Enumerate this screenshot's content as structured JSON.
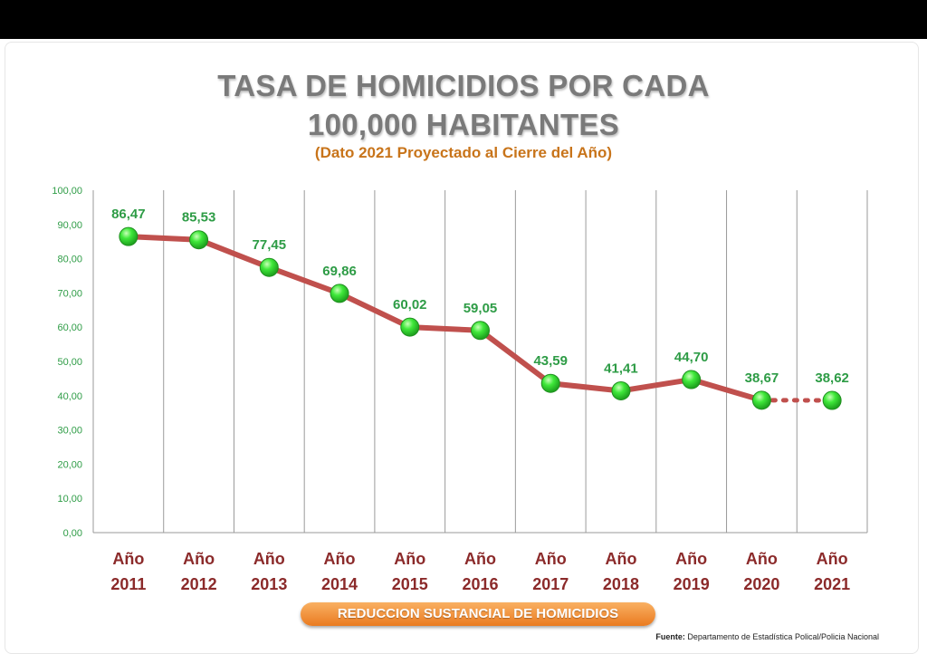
{
  "chart_data": {
    "type": "line",
    "title_line1": "TASA DE HOMICIDIOS POR CADA",
    "title_line2": "100,000 HABITANTES",
    "subtitle": "(Dato 2021 Proyectado al Cierre del Año)",
    "categories": [
      [
        "Año",
        "2011"
      ],
      [
        "Año",
        "2012"
      ],
      [
        "Año",
        "2013"
      ],
      [
        "Año",
        "2014"
      ],
      [
        "Año",
        "2015"
      ],
      [
        "Año",
        "2016"
      ],
      [
        "Año",
        "2017"
      ],
      [
        "Año",
        "2018"
      ],
      [
        "Año",
        "2019"
      ],
      [
        "Año",
        "2020"
      ],
      [
        "Año",
        "2021"
      ]
    ],
    "values": [
      86.47,
      85.53,
      77.45,
      69.86,
      60.02,
      59.05,
      43.59,
      41.41,
      44.7,
      38.67,
      38.62
    ],
    "data_labels": [
      "86,47",
      "85,53",
      "77,45",
      "69,86",
      "60,02",
      "59,05",
      "43,59",
      "41,41",
      "44,70",
      "38,67",
      "38,62"
    ],
    "projected_from_index": 9,
    "ylim": [
      0,
      100
    ],
    "yticks": [
      0,
      10,
      20,
      30,
      40,
      50,
      60,
      70,
      80,
      90,
      100
    ],
    "ytick_labels": [
      "0,00",
      "10,00",
      "20,00",
      "30,00",
      "40,00",
      "50,00",
      "60,00",
      "70,00",
      "80,00",
      "90,00",
      "100,00"
    ],
    "grid": "vertical",
    "colors": {
      "line": "#c0504d",
      "marker": "#33e633",
      "marker_edge": "#1f8f1f",
      "data_label": "#2e9c46",
      "category_label": "#8b2a2a",
      "ytick_label": "#2e9c46",
      "title": "#7a7a7a",
      "subtitle": "#c8741a",
      "banner": "#ef8a2c"
    }
  },
  "banner": {
    "label": "REDUCCION SUSTANCIAL DE HOMICIDIOS"
  },
  "source": {
    "prefix": "Fuente:",
    "text": "Departamento de Estadística Polical/Policia Nacional"
  }
}
